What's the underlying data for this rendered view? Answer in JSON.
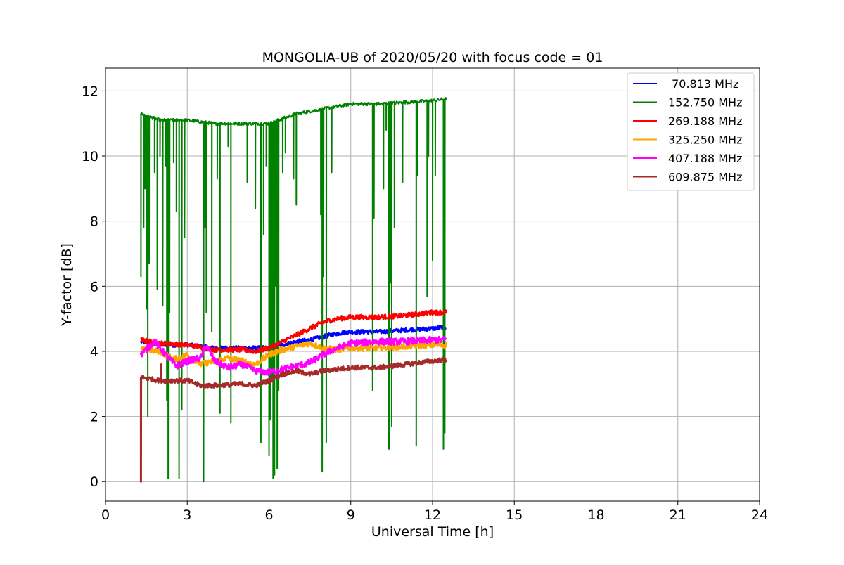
{
  "chart_data": {
    "type": "line",
    "title": "MONGOLIA-UB of 2020/05/20 with focus code = 01",
    "xlabel": "Universal Time [h]",
    "ylabel": "Y-factor [dB]",
    "xlim": [
      0,
      24
    ],
    "ylim": [
      -0.6,
      12.7
    ],
    "xticks": [
      0,
      3,
      6,
      9,
      12,
      15,
      18,
      21,
      24
    ],
    "yticks": [
      0,
      2,
      4,
      6,
      8,
      10,
      12
    ],
    "grid": true,
    "legend_position": "top-right",
    "series": [
      {
        "name": " 70.813 MHz",
        "color": "#0000ff",
        "x": [
          1.3,
          2,
          3,
          4,
          5,
          6,
          6.5,
          7,
          7.5,
          8,
          8.5,
          9,
          10,
          11,
          12,
          12.5
        ],
        "y": [
          4.3,
          4.2,
          4.2,
          4.1,
          4.1,
          4.1,
          4.2,
          4.3,
          4.35,
          4.45,
          4.55,
          4.6,
          4.6,
          4.65,
          4.7,
          4.75
        ],
        "noise": 0.06
      },
      {
        "name": "152.750 MHz",
        "color": "#008000",
        "x": [
          1.3,
          2,
          3,
          4,
          5,
          6,
          7,
          8,
          9,
          10,
          11,
          12,
          12.5
        ],
        "y": [
          11.3,
          11.1,
          11.1,
          11.0,
          11.0,
          11.0,
          11.3,
          11.45,
          11.6,
          11.6,
          11.65,
          11.7,
          11.75
        ],
        "noise": 0.05,
        "dips": [
          [
            1.3,
            6.3
          ],
          [
            1.4,
            7.8
          ],
          [
            1.45,
            9.0
          ],
          [
            1.5,
            5.3
          ],
          [
            1.55,
            2.0
          ],
          [
            1.6,
            6.7
          ],
          [
            1.8,
            9.5
          ],
          [
            1.9,
            5.9
          ],
          [
            2.0,
            10.0
          ],
          [
            2.1,
            5.4
          ],
          [
            2.2,
            9.7
          ],
          [
            2.25,
            2.5
          ],
          [
            2.3,
            0.1
          ],
          [
            2.35,
            5.2
          ],
          [
            2.5,
            9.8
          ],
          [
            2.6,
            8.3
          ],
          [
            2.7,
            0.1
          ],
          [
            2.8,
            2.2
          ],
          [
            2.9,
            7.5
          ],
          [
            3.6,
            0.0
          ],
          [
            3.65,
            7.8
          ],
          [
            3.7,
            5.2
          ],
          [
            3.9,
            4.6
          ],
          [
            4.1,
            9.3
          ],
          [
            4.2,
            2.1
          ],
          [
            4.5,
            10.3
          ],
          [
            4.6,
            1.8
          ],
          [
            5.2,
            9.2
          ],
          [
            5.5,
            8.4
          ],
          [
            5.7,
            1.2
          ],
          [
            5.8,
            7.6
          ],
          [
            5.9,
            9.7
          ],
          [
            6.0,
            0.8
          ],
          [
            6.05,
            1.9
          ],
          [
            6.1,
            3.2
          ],
          [
            6.15,
            0.1
          ],
          [
            6.2,
            0.2
          ],
          [
            6.25,
            6.0
          ],
          [
            6.3,
            0.4
          ],
          [
            6.35,
            2.8
          ],
          [
            6.5,
            9.5
          ],
          [
            6.6,
            10.1
          ],
          [
            6.9,
            9.3
          ],
          [
            7.0,
            8.5
          ],
          [
            7.9,
            8.2
          ],
          [
            7.95,
            0.3
          ],
          [
            8.0,
            6.3
          ],
          [
            8.1,
            1.2
          ],
          [
            8.3,
            9.5
          ],
          [
            9.8,
            2.8
          ],
          [
            9.85,
            8.1
          ],
          [
            10.2,
            9.0
          ],
          [
            10.3,
            10.8
          ],
          [
            10.4,
            1.0
          ],
          [
            10.45,
            6.1
          ],
          [
            10.5,
            1.7
          ],
          [
            10.6,
            7.8
          ],
          [
            10.9,
            9.2
          ],
          [
            11.4,
            1.1
          ],
          [
            11.45,
            9.4
          ],
          [
            11.8,
            5.7
          ],
          [
            11.85,
            10.0
          ],
          [
            12.0,
            6.8
          ],
          [
            12.1,
            9.4
          ],
          [
            12.4,
            1.0
          ],
          [
            12.45,
            1.5
          ],
          [
            12.5,
            7.0
          ]
        ]
      },
      {
        "name": "269.188 MHz",
        "color": "#ff0000",
        "x": [
          1.3,
          2,
          3,
          4,
          5,
          5.5,
          6,
          6.5,
          7,
          7.5,
          8,
          8.5,
          9,
          9.5,
          10,
          11,
          12,
          12.5
        ],
        "y": [
          4.35,
          4.25,
          4.2,
          4.05,
          4.05,
          4.0,
          4.1,
          4.3,
          4.5,
          4.7,
          4.9,
          5.0,
          5.05,
          5.05,
          5.05,
          5.1,
          5.2,
          5.2
        ],
        "noise": 0.07
      },
      {
        "name": "325.250 MHz",
        "color": "#ffa500",
        "x": [
          1.3,
          2,
          2.5,
          3,
          3.5,
          4,
          4.5,
          5,
          5.5,
          6,
          6.5,
          7,
          7.5,
          8,
          8.5,
          9,
          10,
          11,
          12,
          12.5
        ],
        "y": [
          4.05,
          4.0,
          3.75,
          3.9,
          3.6,
          3.7,
          3.8,
          3.7,
          3.6,
          3.9,
          4.05,
          4.15,
          4.25,
          4.1,
          4.05,
          4.1,
          4.1,
          4.15,
          4.2,
          4.2
        ],
        "noise": 0.09
      },
      {
        "name": "407.188 MHz",
        "color": "#ff00ff",
        "x": [
          1.3,
          1.8,
          2.2,
          2.6,
          3.0,
          3.5,
          3.7,
          4.0,
          4.5,
          5.0,
          5.5,
          6.0,
          6.5,
          7.0,
          7.5,
          8.0,
          8.5,
          9.0,
          10.0,
          11.0,
          12.0,
          12.5
        ],
        "y": [
          3.9,
          4.3,
          3.9,
          3.55,
          3.7,
          3.8,
          4.2,
          3.7,
          3.5,
          3.6,
          3.4,
          3.35,
          3.45,
          3.55,
          3.65,
          3.9,
          4.1,
          4.25,
          4.3,
          4.3,
          4.35,
          4.35
        ],
        "noise": 0.1
      },
      {
        "name": "609.875 MHz",
        "color": "#a52a2a",
        "x": [
          1.3,
          2,
          3,
          3.5,
          4,
          5,
          5.5,
          6,
          6.5,
          7,
          7.5,
          8,
          9,
          10,
          11,
          12,
          12.5
        ],
        "y": [
          3.2,
          3.1,
          3.1,
          2.95,
          2.95,
          3.0,
          2.95,
          3.1,
          3.3,
          3.4,
          3.3,
          3.4,
          3.5,
          3.5,
          3.6,
          3.7,
          3.75
        ],
        "noise": 0.07,
        "dips": [
          [
            1.3,
            0.0
          ],
          [
            2.05,
            3.6
          ]
        ]
      }
    ]
  }
}
